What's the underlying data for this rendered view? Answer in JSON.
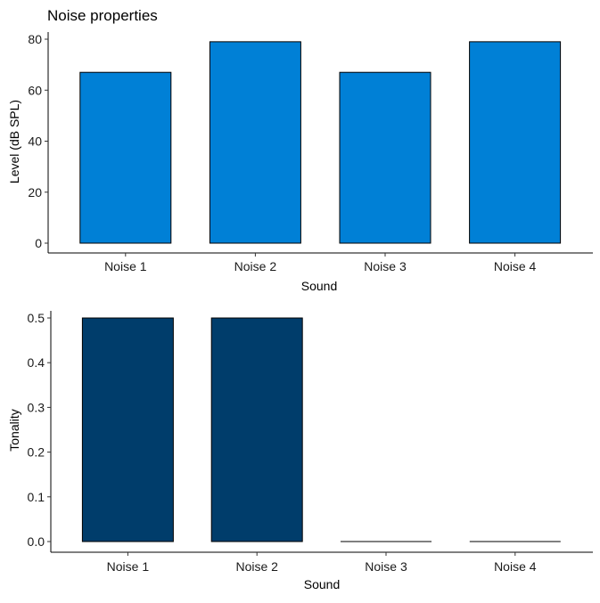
{
  "figure": {
    "title": "Noise properties"
  },
  "chart_data": [
    {
      "type": "bar",
      "title": "Noise properties",
      "categories": [
        "Noise 1",
        "Noise 2",
        "Noise 3",
        "Noise 4"
      ],
      "values": [
        67,
        79,
        67,
        79
      ],
      "xlabel": "Sound",
      "ylabel": "Level (dB SPL)",
      "ylim": [
        0,
        80
      ],
      "yticks": [
        0,
        20,
        40,
        60,
        80
      ],
      "bar_color": "#0080D6",
      "grid": false
    },
    {
      "type": "bar",
      "title": "",
      "categories": [
        "Noise 1",
        "Noise 2",
        "Noise 3",
        "Noise 4"
      ],
      "values": [
        0.5,
        0.5,
        0,
        0
      ],
      "xlabel": "Sound",
      "ylabel": "Tonality",
      "ylim": [
        0,
        0.5
      ],
      "yticks": [
        "0.0",
        "0.1",
        "0.2",
        "0.3",
        "0.4",
        "0.5"
      ],
      "bar_color": "#003D6B",
      "grid": false
    }
  ]
}
